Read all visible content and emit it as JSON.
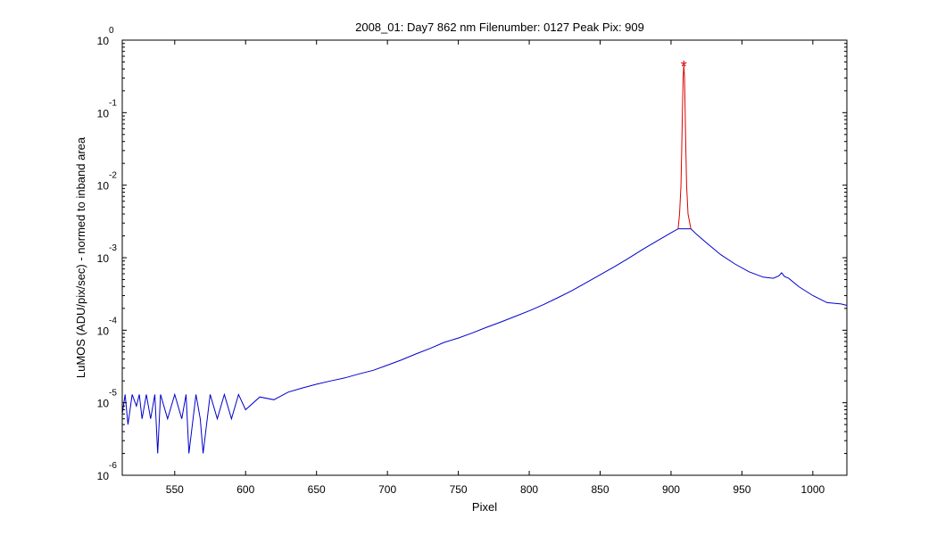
{
  "chart_data": {
    "type": "line",
    "title": "2008_01: Day7  862 nm  Filenumber: 0127 Peak Pix: 909",
    "xlabel": "Pixel",
    "ylabel": "LuMOS (ADU/pix/sec) - normed to inband area",
    "xlim": [
      513,
      1024
    ],
    "ylim": [
      1e-06,
      1
    ],
    "yscale": "log",
    "xticks": [
      550,
      600,
      650,
      700,
      750,
      800,
      850,
      900,
      950,
      1000
    ],
    "yticks": [
      {
        "base": "10",
        "exp": "0",
        "value": 1
      },
      {
        "base": "10",
        "exp": "-1",
        "value": 0.1
      },
      {
        "base": "10",
        "exp": "-2",
        "value": 0.01
      },
      {
        "base": "10",
        "exp": "-3",
        "value": 0.001
      },
      {
        "base": "10",
        "exp": "-4",
        "value": 0.0001
      },
      {
        "base": "10",
        "exp": "-5",
        "value": 1e-05
      },
      {
        "base": "10",
        "exp": "-6",
        "value": 1e-06
      }
    ],
    "grid": false,
    "series": [
      {
        "color": "#0000cc",
        "x": [
          513,
          515,
          517,
          520,
          523,
          525,
          527,
          530,
          533,
          536,
          538,
          540,
          545,
          550,
          555,
          558,
          560,
          565,
          568,
          570,
          575,
          580,
          585,
          590,
          595,
          600,
          610,
          620,
          630,
          640,
          650,
          660,
          670,
          680,
          690,
          700,
          710,
          720,
          730,
          740,
          750,
          760,
          770,
          780,
          790,
          800,
          810,
          820,
          830,
          840,
          850,
          860,
          870,
          880,
          890,
          900,
          905,
          914,
          918,
          925,
          935,
          945,
          955,
          965,
          972,
          976,
          978,
          980,
          983,
          990,
          1000,
          1010,
          1020,
          1024
        ],
        "y": [
          7e-06,
          1.3e-05,
          5e-06,
          1.3e-05,
          9e-06,
          1.3e-05,
          6e-06,
          1.3e-05,
          6e-06,
          1.3e-05,
          2e-06,
          1.3e-05,
          6e-06,
          1.3e-05,
          6e-06,
          1.3e-05,
          2e-06,
          1.3e-05,
          6e-06,
          2e-06,
          1.3e-05,
          6e-06,
          1.3e-05,
          6e-06,
          1.3e-05,
          8e-06,
          1.2e-05,
          1.1e-05,
          1.4e-05,
          1.6e-05,
          1.8e-05,
          2e-05,
          2.2e-05,
          2.5e-05,
          2.8e-05,
          3.3e-05,
          3.9e-05,
          4.7e-05,
          5.6e-05,
          6.8e-05,
          7.8e-05,
          9.2e-05,
          0.00011,
          0.00013,
          0.000155,
          0.000185,
          0.000225,
          0.00028,
          0.00035,
          0.00045,
          0.00058,
          0.00075,
          0.00098,
          0.0013,
          0.0017,
          0.0022,
          0.0025,
          0.0025,
          0.0021,
          0.0016,
          0.0011,
          0.00082,
          0.00064,
          0.00054,
          0.00052,
          0.00056,
          0.00062,
          0.00055,
          0.00052,
          0.0004,
          0.0003,
          0.00024,
          0.00023,
          0.00022
        ]
      },
      {
        "color": "#dd0000",
        "x": [
          905,
          906,
          907,
          907.5,
          908,
          908.5,
          909,
          909.5,
          910,
          910.5,
          911,
          912,
          914
        ],
        "y": [
          0.0025,
          0.004,
          0.01,
          0.03,
          0.1,
          0.3,
          0.45,
          0.3,
          0.1,
          0.03,
          0.01,
          0.004,
          0.0025
        ]
      }
    ],
    "peak_marker": {
      "x": 909,
      "y": 0.45,
      "symbol": "*",
      "color": "#dd0000"
    }
  }
}
